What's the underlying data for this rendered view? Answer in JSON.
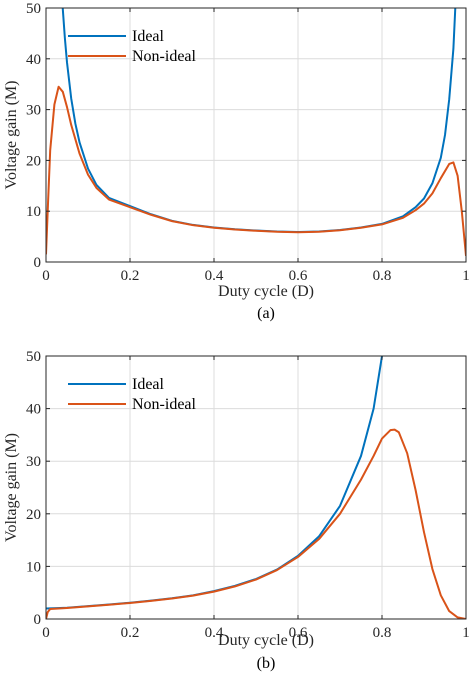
{
  "chart_data": [
    {
      "type": "line",
      "caption": "(a)",
      "xlabel": "Duty cycle (D)",
      "ylabel": "Voltage gain (M)",
      "xlim": [
        0,
        1
      ],
      "ylim": [
        0,
        50
      ],
      "xticks": [
        0,
        0.2,
        0.4,
        0.6,
        0.8,
        1
      ],
      "xtick_labels": [
        "0",
        "0.2",
        "0.4",
        "0.6",
        "0.8",
        "1"
      ],
      "yticks": [
        0,
        10,
        20,
        30,
        40,
        50
      ],
      "ytick_labels": [
        "0",
        "10",
        "20",
        "30",
        "40",
        "50"
      ],
      "grid": true,
      "legend_position": "top-left",
      "series": [
        {
          "name": "Ideal",
          "color": "#0072BD",
          "points": [
            [
              0.0398,
              50
            ],
            [
              0.045,
              44.0
            ],
            [
              0.05,
              39.3
            ],
            [
              0.06,
              32.2
            ],
            [
              0.07,
              27.2
            ],
            [
              0.08,
              23.5
            ],
            [
              0.1,
              18.4
            ],
            [
              0.12,
              15.2
            ],
            [
              0.15,
              12.6
            ],
            [
              0.2,
              11.0
            ],
            [
              0.25,
              9.4
            ],
            [
              0.3,
              8.1
            ],
            [
              0.35,
              7.3
            ],
            [
              0.4,
              6.8
            ],
            [
              0.45,
              6.45
            ],
            [
              0.5,
              6.2
            ],
            [
              0.55,
              6.0
            ],
            [
              0.6,
              5.9
            ],
            [
              0.65,
              6.0
            ],
            [
              0.7,
              6.3
            ],
            [
              0.75,
              6.8
            ],
            [
              0.8,
              7.5
            ],
            [
              0.85,
              9.0
            ],
            [
              0.88,
              10.8
            ],
            [
              0.9,
              12.5
            ],
            [
              0.92,
              15.5
            ],
            [
              0.94,
              20.5
            ],
            [
              0.95,
              25.0
            ],
            [
              0.96,
              32.0
            ],
            [
              0.97,
              42.0
            ],
            [
              0.9745,
              50
            ]
          ]
        },
        {
          "name": "Non-ideal",
          "color": "#D95319",
          "points": [
            [
              0.0,
              1.5
            ],
            [
              0.005,
              12.0
            ],
            [
              0.01,
              22.0
            ],
            [
              0.02,
              31.0
            ],
            [
              0.03,
              34.5
            ],
            [
              0.04,
              33.5
            ],
            [
              0.05,
              30.5
            ],
            [
              0.06,
              27.0
            ],
            [
              0.08,
              21.3
            ],
            [
              0.1,
              17.2
            ],
            [
              0.12,
              14.6
            ],
            [
              0.15,
              12.3
            ],
            [
              0.2,
              10.8
            ],
            [
              0.25,
              9.3
            ],
            [
              0.3,
              8.05
            ],
            [
              0.35,
              7.25
            ],
            [
              0.4,
              6.75
            ],
            [
              0.45,
              6.4
            ],
            [
              0.5,
              6.15
            ],
            [
              0.55,
              5.95
            ],
            [
              0.6,
              5.85
            ],
            [
              0.65,
              5.95
            ],
            [
              0.7,
              6.25
            ],
            [
              0.75,
              6.75
            ],
            [
              0.8,
              7.4
            ],
            [
              0.85,
              8.7
            ],
            [
              0.88,
              10.2
            ],
            [
              0.9,
              11.5
            ],
            [
              0.92,
              13.5
            ],
            [
              0.94,
              16.5
            ],
            [
              0.96,
              19.3
            ],
            [
              0.97,
              19.6
            ],
            [
              0.98,
              17.0
            ],
            [
              0.99,
              10.0
            ],
            [
              1.0,
              1.2
            ]
          ]
        }
      ]
    },
    {
      "type": "line",
      "caption": "(b)",
      "xlabel": "Duty cycle (D)",
      "ylabel": "Voltage gain (M)",
      "xlim": [
        0,
        1
      ],
      "ylim": [
        0,
        50
      ],
      "xticks": [
        0,
        0.2,
        0.4,
        0.6,
        0.8,
        1
      ],
      "xtick_labels": [
        "0",
        "0.2",
        "0.4",
        "0.6",
        "0.8",
        "1"
      ],
      "yticks": [
        0,
        10,
        20,
        30,
        40,
        50
      ],
      "ytick_labels": [
        "0",
        "10",
        "20",
        "30",
        "40",
        "50"
      ],
      "grid": true,
      "legend_position": "top-left",
      "series": [
        {
          "name": "Ideal",
          "color": "#0072BD",
          "points": [
            [
              0.0,
              2.0
            ],
            [
              0.05,
              2.15
            ],
            [
              0.1,
              2.45
            ],
            [
              0.15,
              2.75
            ],
            [
              0.2,
              3.1
            ],
            [
              0.25,
              3.5
            ],
            [
              0.3,
              3.95
            ],
            [
              0.35,
              4.5
            ],
            [
              0.4,
              5.3
            ],
            [
              0.45,
              6.3
            ],
            [
              0.5,
              7.6
            ],
            [
              0.55,
              9.4
            ],
            [
              0.6,
              12.0
            ],
            [
              0.65,
              15.7
            ],
            [
              0.7,
              21.5
            ],
            [
              0.75,
              31.0
            ],
            [
              0.78,
              40.0
            ],
            [
              0.8,
              50
            ]
          ]
        },
        {
          "name": "Non-ideal",
          "color": "#D95319",
          "points": [
            [
              0.0,
              0.0
            ],
            [
              0.004,
              1.3
            ],
            [
              0.01,
              1.9
            ],
            [
              0.05,
              2.1
            ],
            [
              0.1,
              2.4
            ],
            [
              0.15,
              2.7
            ],
            [
              0.2,
              3.05
            ],
            [
              0.25,
              3.45
            ],
            [
              0.3,
              3.9
            ],
            [
              0.35,
              4.45
            ],
            [
              0.4,
              5.2
            ],
            [
              0.45,
              6.2
            ],
            [
              0.5,
              7.5
            ],
            [
              0.55,
              9.3
            ],
            [
              0.6,
              11.8
            ],
            [
              0.65,
              15.2
            ],
            [
              0.7,
              20.0
            ],
            [
              0.75,
              26.5
            ],
            [
              0.78,
              31.0
            ],
            [
              0.8,
              34.3
            ],
            [
              0.82,
              35.9
            ],
            [
              0.83,
              36.0
            ],
            [
              0.84,
              35.5
            ],
            [
              0.86,
              31.5
            ],
            [
              0.88,
              24.5
            ],
            [
              0.9,
              16.5
            ],
            [
              0.92,
              9.5
            ],
            [
              0.94,
              4.5
            ],
            [
              0.96,
              1.5
            ],
            [
              0.98,
              0.3
            ],
            [
              1.0,
              0.0
            ]
          ]
        }
      ]
    }
  ]
}
